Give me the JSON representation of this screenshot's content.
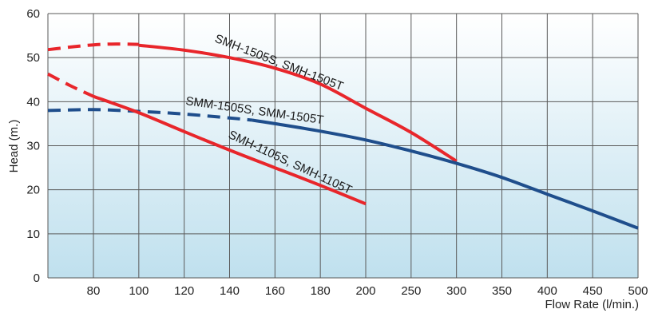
{
  "chart_data": {
    "type": "line",
    "xlabel": "Flow Rate (l/min.)",
    "ylabel": "Head (m.)",
    "ylim": [
      0,
      60
    ],
    "x_ticks": [
      80,
      100,
      120,
      140,
      160,
      180,
      200,
      250,
      300,
      350,
      400,
      450,
      500
    ],
    "y_ticks": [
      0,
      10,
      20,
      30,
      40,
      50,
      60
    ],
    "grid": true,
    "background": "light-blue vertical gradient",
    "series": [
      {
        "name": "SMH-1505S, SMH-1505T",
        "color": "#e8262b",
        "dashed_points": [
          [
            60,
            51.8
          ],
          [
            70,
            52.4
          ],
          [
            80,
            52.9
          ],
          [
            90,
            53.1
          ],
          [
            100,
            53.0
          ]
        ],
        "solid_points": [
          [
            100,
            52.8
          ],
          [
            120,
            51.7
          ],
          [
            140,
            50.0
          ],
          [
            160,
            47.6
          ],
          [
            180,
            44.0
          ],
          [
            200,
            38.5
          ],
          [
            250,
            33.0
          ],
          [
            300,
            26.5
          ]
        ]
      },
      {
        "name": "SMM-1505S, SMM-1505T",
        "color": "#1f4e8c",
        "dashed_points": [
          [
            60,
            38.0
          ],
          [
            80,
            38.2
          ],
          [
            100,
            37.8
          ],
          [
            120,
            37.2
          ],
          [
            140,
            36.3
          ],
          [
            150,
            35.8
          ]
        ],
        "solid_points": [
          [
            150,
            35.8
          ],
          [
            160,
            35.0
          ],
          [
            180,
            33.3
          ],
          [
            200,
            31.3
          ],
          [
            250,
            28.8
          ],
          [
            300,
            26.0
          ],
          [
            350,
            22.8
          ],
          [
            400,
            19.0
          ],
          [
            450,
            15.2
          ],
          [
            500,
            11.3
          ]
        ]
      },
      {
        "name": "SMH-1105S, SMH-1105T",
        "color": "#e8262b",
        "dashed_points": [
          [
            60,
            46.3
          ],
          [
            70,
            43.6
          ],
          [
            80,
            41.2
          ]
        ],
        "solid_points": [
          [
            80,
            41.2
          ],
          [
            100,
            37.5
          ],
          [
            120,
            33.2
          ],
          [
            140,
            29.0
          ],
          [
            160,
            25.0
          ],
          [
            180,
            21.0
          ],
          [
            200,
            16.8
          ]
        ]
      }
    ]
  }
}
